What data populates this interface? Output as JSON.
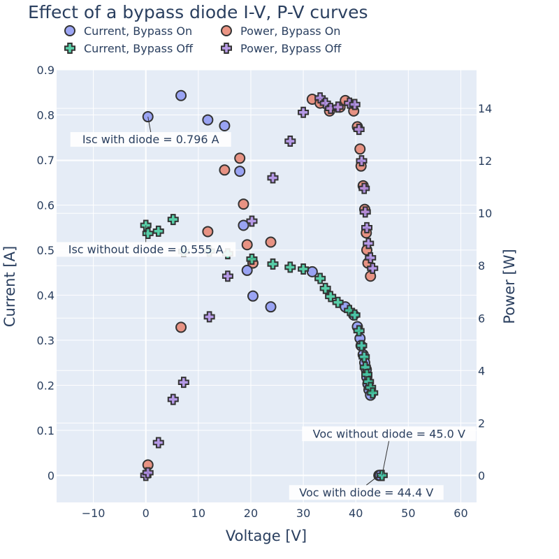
{
  "chart_data": {
    "type": "scatter",
    "title": "Effect of a bypass diode I-V, P-V curves",
    "xlabel": "Voltage [V]",
    "ylabel": "Current [A]",
    "y2label": "Power [W]",
    "xlim": [
      -17,
      63
    ],
    "ylim": [
      -0.06,
      0.9
    ],
    "y2lim": [
      -1.03,
      15.47
    ],
    "x_ticks": [
      -10,
      0,
      10,
      20,
      30,
      40,
      50,
      60
    ],
    "x_tick_labels": [
      "−10",
      "0",
      "10",
      "20",
      "30",
      "40",
      "50",
      "60"
    ],
    "y_ticks": [
      0,
      0.1,
      0.2,
      0.3,
      0.4,
      0.5,
      0.6,
      0.7,
      0.8,
      0.9
    ],
    "y_tick_labels": [
      "0",
      "0.1",
      "0.2",
      "0.3",
      "0.4",
      "0.5",
      "0.6",
      "0.7",
      "0.8",
      "0.9"
    ],
    "y2_ticks": [
      0,
      2,
      4,
      6,
      8,
      10,
      12,
      14
    ],
    "y2_tick_labels": [
      "0",
      "2",
      "4",
      "6",
      "8",
      "10",
      "12",
      "14"
    ],
    "grid": true,
    "legend_position": "top",
    "colors": {
      "background": "#e5ecf6",
      "grid": "#ffffff",
      "text": "#2a3f5f",
      "current_on": "#8c96f2",
      "power_on": "#e8836e",
      "current_off": "#3ec99a",
      "power_off": "#ad8be3",
      "marker_line": "#333333"
    },
    "series": [
      {
        "name": "Current, Bypass On",
        "axis": "y",
        "marker": "circle",
        "color": "#8c96f2",
        "points": [
          [
            0.4,
            0.796
          ],
          [
            6.7,
            0.843
          ],
          [
            11.8,
            0.789
          ],
          [
            15.0,
            0.776
          ],
          [
            17.9,
            0.675
          ],
          [
            18.6,
            0.555
          ],
          [
            19.3,
            0.455
          ],
          [
            20.4,
            0.398
          ],
          [
            23.8,
            0.374
          ],
          [
            31.7,
            0.452
          ],
          [
            38.0,
            0.374
          ],
          [
            39.6,
            0.356
          ],
          [
            40.3,
            0.33
          ],
          [
            40.8,
            0.304
          ],
          [
            41.0,
            0.288
          ],
          [
            41.4,
            0.268
          ],
          [
            41.7,
            0.25
          ],
          [
            42.0,
            0.235
          ],
          [
            42.1,
            0.218
          ],
          [
            42.3,
            0.203
          ],
          [
            42.5,
            0.19
          ],
          [
            42.8,
            0.178
          ],
          [
            44.4,
            0.0
          ],
          [
            44.6,
            0.0
          ]
        ]
      },
      {
        "name": "Power, Bypass On",
        "axis": "y2",
        "marker": "circle",
        "color": "#e8836e",
        "points": [
          [
            0.4,
            0.4
          ],
          [
            6.7,
            5.65
          ],
          [
            11.8,
            9.3
          ],
          [
            15.0,
            11.65
          ],
          [
            17.9,
            12.1
          ],
          [
            18.6,
            10.35
          ],
          [
            19.3,
            8.8
          ],
          [
            20.4,
            8.1
          ],
          [
            23.8,
            8.9
          ],
          [
            31.7,
            14.35
          ],
          [
            33.2,
            14.2
          ],
          [
            35.0,
            13.9
          ],
          [
            37.0,
            14.05
          ],
          [
            38.0,
            14.3
          ],
          [
            39.6,
            13.9
          ],
          [
            40.3,
            13.3
          ],
          [
            40.8,
            12.45
          ],
          [
            41.0,
            11.8
          ],
          [
            41.4,
            11.05
          ],
          [
            41.7,
            10.15
          ],
          [
            42.0,
            9.25
          ],
          [
            42.1,
            8.6
          ],
          [
            42.3,
            8.1
          ],
          [
            42.8,
            7.6
          ],
          [
            44.4,
            0.0
          ]
        ]
      },
      {
        "name": "Current, Bypass Off",
        "axis": "y",
        "marker": "cross",
        "color": "#3ec99a",
        "points": [
          [
            0.0,
            0.555
          ],
          [
            0.4,
            0.537
          ],
          [
            2.4,
            0.542
          ],
          [
            5.2,
            0.568
          ],
          [
            7.2,
            0.497
          ],
          [
            12.1,
            0.498
          ],
          [
            15.6,
            0.492
          ],
          [
            20.2,
            0.48
          ],
          [
            24.2,
            0.469
          ],
          [
            27.5,
            0.462
          ],
          [
            30.0,
            0.458
          ],
          [
            33.2,
            0.437
          ],
          [
            34.2,
            0.415
          ],
          [
            35.2,
            0.397
          ],
          [
            36.6,
            0.384
          ],
          [
            38.8,
            0.366
          ],
          [
            39.8,
            0.356
          ],
          [
            40.6,
            0.321
          ],
          [
            41.1,
            0.288
          ],
          [
            41.6,
            0.263
          ],
          [
            41.8,
            0.24
          ],
          [
            42.1,
            0.224
          ],
          [
            42.4,
            0.208
          ],
          [
            42.8,
            0.195
          ],
          [
            43.2,
            0.183
          ],
          [
            45.0,
            0.0
          ]
        ]
      },
      {
        "name": "Power, Bypass Off",
        "axis": "y2",
        "marker": "cross",
        "color": "#ad8be3",
        "points": [
          [
            0.0,
            0.0
          ],
          [
            0.4,
            0.1
          ],
          [
            2.4,
            1.25
          ],
          [
            5.2,
            2.9
          ],
          [
            7.2,
            3.55
          ],
          [
            12.1,
            6.05
          ],
          [
            15.6,
            7.6
          ],
          [
            20.2,
            9.7
          ],
          [
            24.2,
            11.35
          ],
          [
            27.5,
            12.75
          ],
          [
            30.0,
            13.85
          ],
          [
            33.2,
            14.4
          ],
          [
            34.2,
            14.2
          ],
          [
            35.2,
            14.0
          ],
          [
            36.6,
            14.05
          ],
          [
            38.8,
            14.2
          ],
          [
            39.8,
            14.15
          ],
          [
            40.6,
            13.2
          ],
          [
            41.1,
            12.0
          ],
          [
            41.6,
            10.95
          ],
          [
            41.8,
            10.05
          ],
          [
            42.1,
            9.45
          ],
          [
            42.4,
            8.85
          ],
          [
            42.8,
            8.3
          ],
          [
            43.2,
            7.9
          ],
          [
            45.0,
            0.0
          ]
        ]
      }
    ],
    "annotations": [
      {
        "text": "Isc with diode = 0.796 A",
        "x": 0.4,
        "y": 0.796
      },
      {
        "text": "Isc without diode = 0.555 A",
        "x": 0.0,
        "y": 0.555
      },
      {
        "text": "Voc without diode = 45.0 V",
        "x": 45.0,
        "y": 0.0
      },
      {
        "text": "Voc with diode = 44.4 V",
        "x": 44.4,
        "y": 0.0
      }
    ]
  }
}
